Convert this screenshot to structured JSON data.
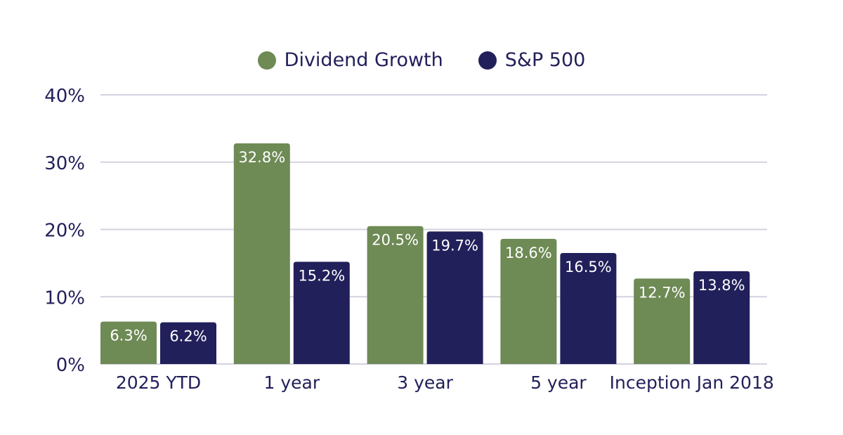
{
  "chart_data": {
    "type": "bar",
    "categories": [
      "2025 YTD",
      "1 year",
      "3 year",
      "5 year",
      "Inception Jan 2018"
    ],
    "series": [
      {
        "name": "Dividend Growth",
        "values": [
          6.3,
          32.8,
          20.5,
          18.6,
          12.7
        ],
        "color": "#6e8a55"
      },
      {
        "name": "S&P 500",
        "values": [
          6.2,
          15.2,
          19.7,
          16.5,
          13.8
        ],
        "color": "#22205a"
      }
    ],
    "data_labels": [
      [
        "6.3%",
        "32.8%",
        "20.5%",
        "18.6%",
        "12.7%"
      ],
      [
        "6.2%",
        "15.2%",
        "19.7%",
        "16.5%",
        "13.8%"
      ]
    ],
    "y_ticks": [
      0,
      10,
      20,
      30,
      40
    ],
    "y_tick_labels": [
      "0%",
      "10%",
      "20%",
      "30%",
      "40%"
    ],
    "ylim": [
      0,
      40
    ],
    "grid": true,
    "legend_position": "top-center",
    "text_color": "#22205a",
    "grid_color": "#d4d2e0"
  }
}
